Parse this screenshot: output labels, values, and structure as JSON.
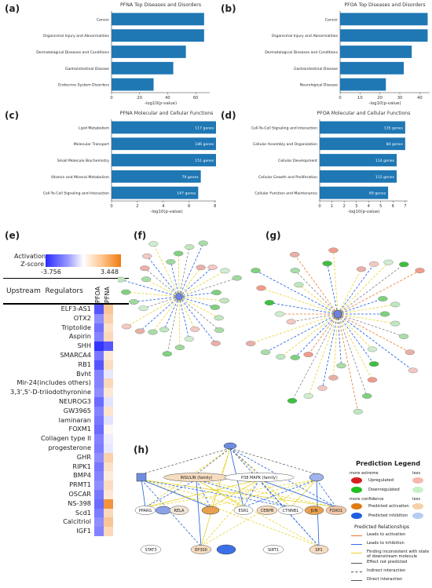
{
  "panels": {
    "a": "(a)",
    "b": "(b)",
    "c": "(c)",
    "d": "(d)",
    "e": "(e)",
    "f": "(f)",
    "g": "(g)",
    "h": "(h)"
  },
  "chart_data": [
    {
      "id": "a",
      "type": "bar",
      "orientation": "horizontal",
      "title": "PFNA Top Diseases and Disorders",
      "xlabel": "-log10(p-value)",
      "xlim": [
        0,
        70
      ],
      "xticks": [
        0,
        20,
        40,
        60
      ],
      "categories": [
        "Cancer",
        "Organismal Injury and Abnormalities",
        "Dermatological Diseases and Conditions",
        "Gastrointestinal Disease",
        "Endocrine System Disorders"
      ],
      "values": [
        66,
        66,
        53,
        44,
        30
      ],
      "data_labels": [],
      "color": "#1f77b4"
    },
    {
      "id": "b",
      "type": "bar",
      "orientation": "horizontal",
      "title": "PFOA Top Diseases and Disorders",
      "xlabel": "-log10(p-value)",
      "xlim": [
        0,
        45
      ],
      "xticks": [
        0,
        10,
        20,
        30,
        40
      ],
      "categories": [
        "Cancer",
        "Organismal Injury and Abnormalities",
        "Dermatological Diseases and Conditions",
        "Gastrointestinal Disease",
        "Neurological Disease"
      ],
      "values": [
        44,
        44,
        36,
        32,
        23
      ],
      "data_labels": [],
      "color": "#1f77b4"
    },
    {
      "id": "c",
      "type": "bar",
      "orientation": "horizontal",
      "title": "PFNA Molecular and Cellular Functions",
      "xlabel": "-log10(p-value)",
      "xlim": [
        0,
        8.5
      ],
      "xticks": [
        0,
        2,
        4,
        6,
        8
      ],
      "categories": [
        "Lipid Metabolism",
        "Molecular Transport",
        "Small Molecule Biochemistry",
        "Vitamin and Mineral Metabolism",
        "Cell-To-Cell Signaling and Interaction"
      ],
      "values": [
        8.1,
        8.1,
        8.1,
        6.9,
        6.7
      ],
      "data_labels": [
        "117 genes",
        "186 genes",
        "151 genes",
        "79 genes",
        "147 genes"
      ],
      "color": "#1f77b4"
    },
    {
      "id": "d",
      "type": "bar",
      "orientation": "horizontal",
      "title": "PFOA Molecular and Cellular Functions",
      "xlabel": "-log10(p-value)",
      "xlim": [
        0,
        7.2
      ],
      "xticks": [
        0,
        1,
        2,
        3,
        4,
        5,
        6,
        7
      ],
      "categories": [
        "Cell-To-Cell Signaling and Interaction",
        "Cellular Assembly and Organization",
        "Cellular Development",
        "Cellular Growth and Proliferation",
        "Cellular Function and Maintenance"
      ],
      "values": [
        7.0,
        7.0,
        6.3,
        6.3,
        5.6
      ],
      "data_labels": [
        "135 genes",
        "84 genes",
        "114 genes",
        "112 genes",
        "69 genes"
      ],
      "color": "#1f77b4"
    },
    {
      "id": "e",
      "type": "heatmap",
      "legend_title": "Activation Z-score",
      "scale_min": -3.756,
      "scale_max": 3.448,
      "scale_min_label": "-3.756",
      "scale_max_label": "3.448",
      "row_header": "Upstream  Regulators",
      "columns": [
        "PFOA",
        "PFNA"
      ],
      "rows": [
        "ELF3-AS1",
        "OTX2",
        "Triptolide",
        "Aspirin",
        "SHH",
        "SMARCA4",
        "RB1",
        "Bvht",
        "Mir-24(includes others)",
        "3,3',5'-D-triiodothyronine",
        "NEUROG3",
        "GW3965",
        "laminaran",
        "FOXM1",
        "Collagen type II",
        "progesterone",
        "GHR",
        "RIPK1",
        "BMP4",
        "PRMT1",
        "OSCAR",
        "NS-398",
        "Scd1",
        "Calcitriol",
        "IGF1"
      ],
      "values": [
        [
          -3.0,
          1.5
        ],
        [
          -2.0,
          1.2
        ],
        [
          -2.5,
          0.8
        ],
        [
          -2.2,
          1.0
        ],
        [
          -3.6,
          -3.0
        ],
        [
          -2.4,
          0.6
        ],
        [
          -3.0,
          0.9
        ],
        [
          -2.2,
          -0.4
        ],
        [
          -2.2,
          1.0
        ],
        [
          -2.0,
          0.6
        ],
        [
          -2.6,
          -0.5
        ],
        [
          -2.2,
          0.7
        ],
        [
          -2.4,
          -0.5
        ],
        [
          -2.6,
          0.2
        ],
        [
          -2.2,
          -0.3
        ],
        [
          -2.3,
          -0.4
        ],
        [
          -2.0,
          1.2
        ],
        [
          -2.4,
          0.8
        ],
        [
          -2.2,
          0.5
        ],
        [
          -2.0,
          0.9
        ],
        [
          -2.4,
          0.6
        ],
        [
          -2.6,
          2.8
        ],
        [
          -2.3,
          1.0
        ],
        [
          -2.0,
          1.5
        ],
        [
          -2.2,
          1.0
        ]
      ]
    }
  ],
  "networks": {
    "h_nodes": [
      "INSULIN (family)",
      "P38 MAPK (family)",
      "PPARG",
      "RELA",
      "ESR1",
      "CEBPB",
      "CTNNB1",
      "JUN",
      "FOXO1",
      "STAT3",
      "EP300",
      "SIRT1",
      "SP1"
    ]
  },
  "legend": {
    "title": "Prediction Legend",
    "more_extreme": "more extreme",
    "less1": "less",
    "upregulated": "Upregulated",
    "downregulated": "Downregulated",
    "more_confidence": "more confidence",
    "less2": "less",
    "predicted_activation": "Predicted activation",
    "predicted_inhibition": "Predicted inhibition",
    "relationships_title": "Predicted Relationships",
    "rel": [
      {
        "label": "Leads to activation",
        "color": "#e8782a",
        "dash": false
      },
      {
        "label": "Leads to inhibition",
        "color": "#2a6ee8",
        "dash": false
      },
      {
        "label": "Finding inconsistent with state of downstream molecule",
        "color": "#e8d32a",
        "dash": false
      },
      {
        "label": "Effect not predicted",
        "color": "#555555",
        "dash": false
      },
      {
        "label": "Indirect interaction",
        "color": "#555555",
        "dash": true
      },
      {
        "label": "Direct interaction",
        "color": "#555555",
        "dash": false
      }
    ]
  }
}
